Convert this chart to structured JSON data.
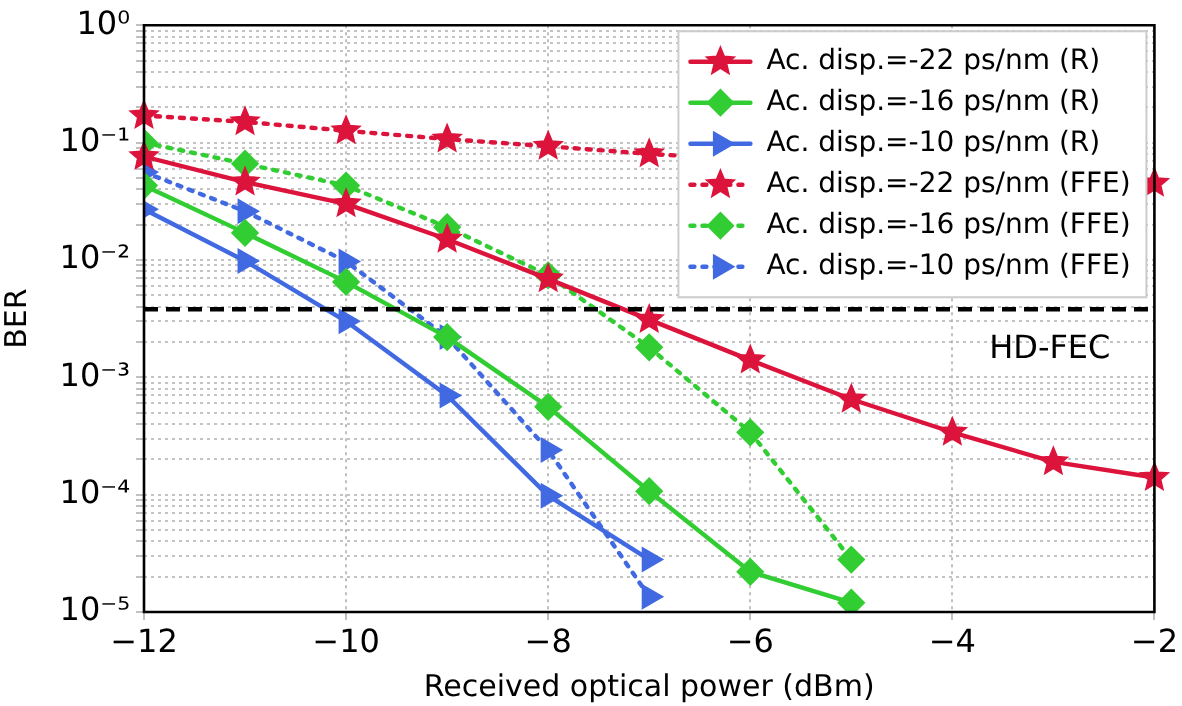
{
  "chart_data": {
    "type": "line",
    "xlabel": "Received optical power (dBm)",
    "ylabel": "BER",
    "x": [
      -12,
      -11,
      -10,
      -9,
      -8,
      -7,
      -6,
      -5,
      -4,
      -3,
      -2
    ],
    "series": [
      {
        "name": "Ac. disp.=-22 ps/nm (R)",
        "color": "#dc143c",
        "marker": "star",
        "line_style": "solid",
        "values": [
          0.076,
          0.046,
          0.03,
          0.015,
          0.0069,
          0.0031,
          0.0014,
          0.00065,
          0.00034,
          0.00019,
          0.00014
        ]
      },
      {
        "name": "Ac. disp.=-16 ps/nm (R)",
        "color": "#32cd32",
        "marker": "diamond",
        "line_style": "solid",
        "values": [
          0.043,
          0.017,
          0.0065,
          0.0022,
          0.00056,
          0.000107,
          2.2e-05,
          1.2e-05,
          null,
          null,
          null
        ]
      },
      {
        "name": "Ac. disp.=-10 ps/nm (R)",
        "color": "#4169e1",
        "marker": "triangle",
        "line_style": "solid",
        "values": [
          0.027,
          0.0098,
          0.003,
          0.0007,
          9.8e-05,
          2.8e-05,
          null,
          null,
          null,
          null,
          null
        ]
      },
      {
        "name": "Ac. disp.=-22 ps/nm (FFE)",
        "color": "#dc143c",
        "marker": "star",
        "line_style": "dotted",
        "values": [
          0.17,
          0.15,
          0.126,
          0.107,
          0.093,
          0.08,
          null,
          null,
          null,
          null,
          0.045
        ]
      },
      {
        "name": "Ac. disp.=-16 ps/nm (FFE)",
        "color": "#32cd32",
        "marker": "diamond",
        "line_style": "dotted",
        "values": [
          0.1,
          0.066,
          0.043,
          0.019,
          0.0074,
          0.0018,
          0.00034,
          2.8e-05,
          null,
          null,
          null
        ]
      },
      {
        "name": "Ac. disp.=-10 ps/nm (FFE)",
        "color": "#4169e1",
        "marker": "triangle",
        "line_style": "dotted",
        "values": [
          0.056,
          0.026,
          0.0097,
          0.0022,
          0.00024,
          1.35e-05,
          null,
          null,
          null,
          null,
          null
        ]
      }
    ],
    "xlim": [
      -12,
      -2
    ],
    "xticks": [
      -12,
      -10,
      -8,
      -6,
      -4,
      -2
    ],
    "ylim": [
      1e-05,
      1
    ],
    "log": true,
    "yticks": [
      {
        "value": 1e-05,
        "label": "10⁻⁵"
      },
      {
        "value": 2e-05,
        "label": null
      },
      {
        "value": 3e-05,
        "label": null
      },
      {
        "value": 4e-05,
        "label": null
      },
      {
        "value": 5e-05,
        "label": null
      },
      {
        "value": 6e-05,
        "label": null
      },
      {
        "value": 7e-05,
        "label": null
      },
      {
        "value": 8e-05,
        "label": null
      },
      {
        "value": 9e-05,
        "label": null
      },
      {
        "value": 0.0001,
        "label": "10⁻⁴"
      },
      {
        "value": 0.0002,
        "label": null
      },
      {
        "value": 0.0003,
        "label": null
      },
      {
        "value": 0.0004,
        "label": null
      },
      {
        "value": 0.0005,
        "label": null
      },
      {
        "value": 0.0006,
        "label": null
      },
      {
        "value": 0.0007,
        "label": null
      },
      {
        "value": 0.0008,
        "label": null
      },
      {
        "value": 0.0009,
        "label": null
      },
      {
        "value": 0.001,
        "label": "10⁻³"
      },
      {
        "value": 0.002,
        "label": null
      },
      {
        "value": 0.003,
        "label": null
      },
      {
        "value": 0.004,
        "label": null
      },
      {
        "value": 0.005,
        "label": null
      },
      {
        "value": 0.006,
        "label": null
      },
      {
        "value": 0.007,
        "label": null
      },
      {
        "value": 0.008,
        "label": null
      },
      {
        "value": 0.009,
        "label": null
      },
      {
        "value": 0.01,
        "label": "10⁻²"
      },
      {
        "value": 0.02,
        "label": null
      },
      {
        "value": 0.03,
        "label": null
      },
      {
        "value": 0.04,
        "label": null
      },
      {
        "value": 0.05,
        "label": null
      },
      {
        "value": 0.06,
        "label": null
      },
      {
        "value": 0.07,
        "label": null
      },
      {
        "value": 0.08,
        "label": null
      },
      {
        "value": 0.09,
        "label": null
      },
      {
        "value": 0.1,
        "label": "10⁻¹"
      },
      {
        "value": 0.2,
        "label": null
      },
      {
        "value": 0.3,
        "label": null
      },
      {
        "value": 0.4,
        "label": null
      },
      {
        "value": 0.5,
        "label": null
      },
      {
        "value": 0.6,
        "label": null
      },
      {
        "value": 0.7,
        "label": null
      },
      {
        "value": 0.8,
        "label": null
      },
      {
        "value": 0.9,
        "label": null
      },
      {
        "value": 1,
        "label": "10⁰"
      }
    ],
    "ref_lines": [
      {
        "axis": "y",
        "value": 0.0038,
        "label": "HD-FEC",
        "color": "#000000",
        "line_style": "dashed"
      }
    ],
    "grid": true,
    "legend": "top right"
  }
}
